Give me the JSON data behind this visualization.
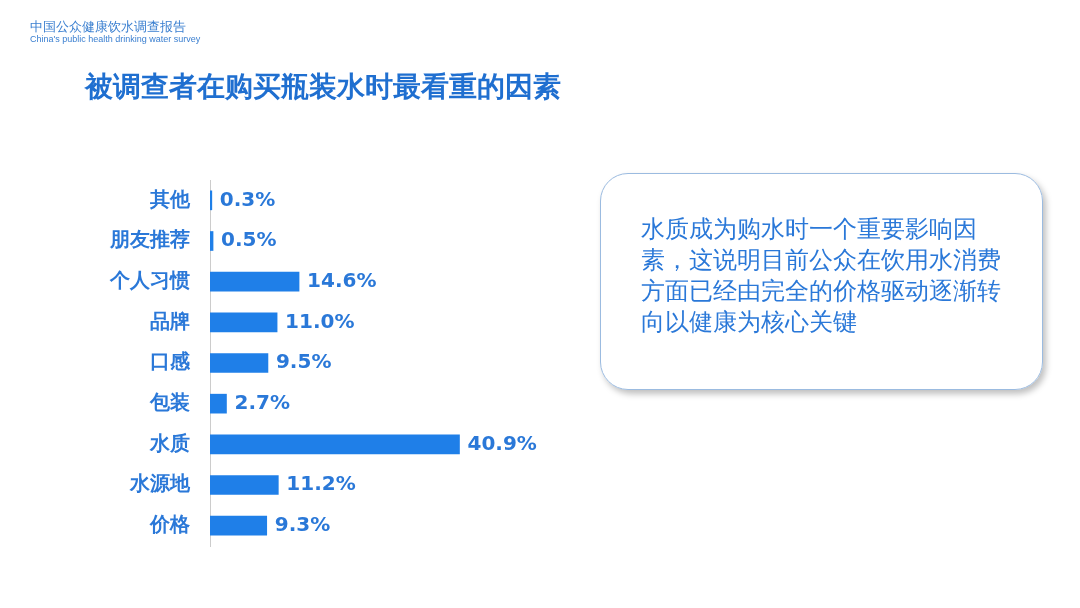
{
  "chart_data": {
    "type": "bar",
    "orientation": "horizontal",
    "title": "被调查者在购买瓶装水时最看重的因素",
    "categories": [
      "其他",
      "朋友推荐",
      "个人习惯",
      "品牌",
      "口感",
      "包装",
      "水质",
      "水源地",
      "价格"
    ],
    "values": [
      0.3,
      0.5,
      14.6,
      11.0,
      9.5,
      2.7,
      40.9,
      11.2,
      9.3
    ],
    "value_labels": [
      "0.3%",
      "0.5%",
      "14.6%",
      "11.0%",
      "9.5%",
      "2.7%",
      "40.9%",
      "11.2%",
      "9.3%"
    ],
    "color": "#1f7fe8",
    "grid": false,
    "legend": false,
    "tick_labels": "y",
    "annotations": [
      "中国公众健康饮水调查报告",
      "China's public health drinking water survey",
      "水质成为购水时一个重要影响因素，这说明目前公众在饮用水消费方面已经由完全的价格驱动逐渐转向以健康为核心关键"
    ]
  }
}
